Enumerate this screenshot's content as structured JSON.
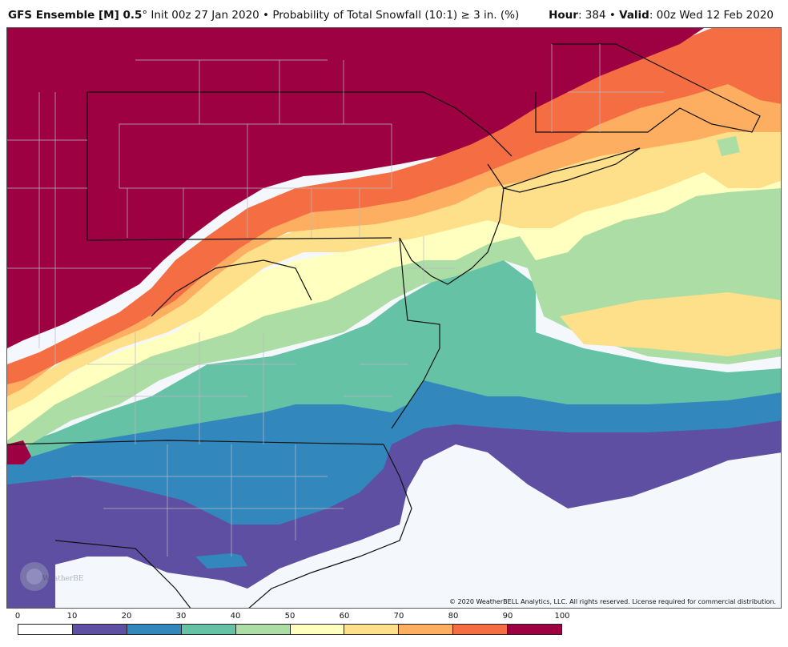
{
  "header": {
    "model": "GFS Ensemble [M] 0.5",
    "degree": "°",
    "init": " Init 00z 27 Jan 2020",
    "bullet": " • ",
    "product": "Probability of Total Snowfall (10:1) ",
    "ge": "≥",
    "threshold": " 3 in. (%)",
    "hour_label": "Hour",
    "hour_value": ": 384 • ",
    "valid_label": "Valid",
    "valid_value": ": 00z Wed 12 Feb 2020"
  },
  "copyright": "© 2020 WeatherBELL Analytics, LLC. All rights reserved. License required for commercial distribution.",
  "logo_text": "WeatherBELL",
  "legend": {
    "ticks": [
      "0",
      "10",
      "20",
      "30",
      "40",
      "50",
      "60",
      "70",
      "80",
      "90",
      "100"
    ],
    "colors": [
      "#ffffff",
      "#5e4fa2",
      "#3288bd",
      "#66c2a5",
      "#abdda4",
      "#ffffbf",
      "#fee08b",
      "#fdae61",
      "#f46d43",
      "#9e0142"
    ]
  },
  "colors": {
    "c0": "#f4f8fc",
    "c10": "#5e4fa2",
    "c20": "#3288bd",
    "c30": "#66c2a5",
    "c40": "#abdda4",
    "c50": "#ffffbf",
    "c60": "#fee08b",
    "c70": "#fdae61",
    "c80": "#f46d43",
    "c90": "#9e0142"
  }
}
